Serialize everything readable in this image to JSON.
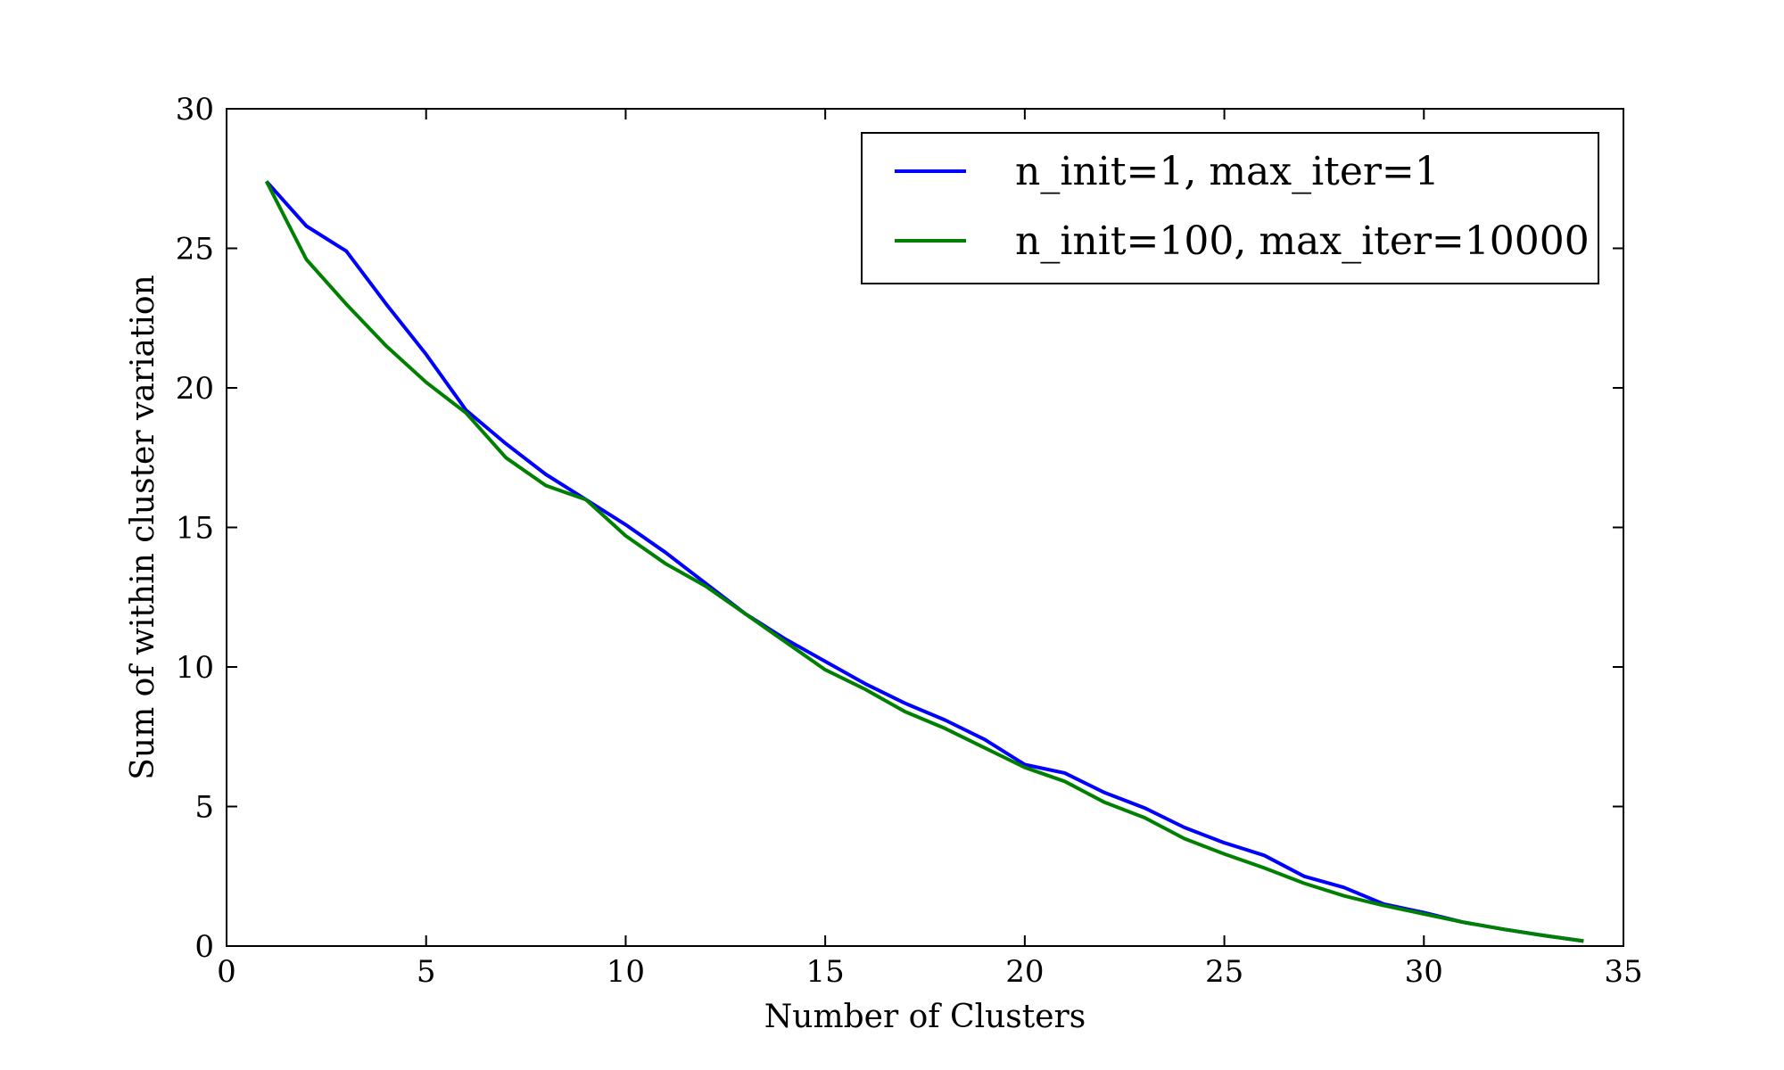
{
  "chart_data": {
    "type": "line",
    "title": "",
    "xlabel": "Number of Clusters",
    "ylabel": "Sum of within cluster variation",
    "xlim": [
      0,
      35
    ],
    "ylim": [
      0,
      30
    ],
    "xticks": [
      0,
      5,
      10,
      15,
      20,
      25,
      30,
      35
    ],
    "yticks": [
      0,
      5,
      10,
      15,
      20,
      25,
      30
    ],
    "x": [
      1,
      2,
      3,
      4,
      5,
      6,
      7,
      8,
      9,
      10,
      11,
      12,
      13,
      14,
      15,
      16,
      17,
      18,
      19,
      20,
      21,
      22,
      23,
      24,
      25,
      26,
      27,
      28,
      29,
      30,
      31,
      32,
      33,
      34
    ],
    "series": [
      {
        "name": "n_init=1, max_iter=1",
        "color": "#0000ff",
        "values": [
          27.4,
          25.8,
          24.9,
          23.0,
          21.2,
          19.2,
          18.0,
          16.9,
          16.0,
          15.1,
          14.1,
          13.0,
          11.9,
          11.0,
          10.2,
          9.4,
          8.7,
          8.1,
          7.4,
          6.5,
          6.2,
          5.5,
          4.95,
          4.25,
          3.7,
          3.25,
          2.5,
          2.1,
          1.5,
          1.2,
          0.85,
          0.6,
          0.38,
          0.18
        ]
      },
      {
        "name": "n_init=100, max_iter=10000",
        "color": "#008000",
        "values": [
          27.4,
          24.6,
          23.0,
          21.5,
          20.2,
          19.1,
          17.5,
          16.5,
          16.0,
          14.7,
          13.7,
          12.9,
          11.9,
          10.9,
          9.9,
          9.2,
          8.4,
          7.8,
          7.1,
          6.4,
          5.9,
          5.15,
          4.6,
          3.85,
          3.3,
          2.8,
          2.25,
          1.8,
          1.45,
          1.15,
          0.85,
          0.6,
          0.38,
          0.18
        ]
      }
    ],
    "legend_position": "top-right",
    "grid": false
  }
}
